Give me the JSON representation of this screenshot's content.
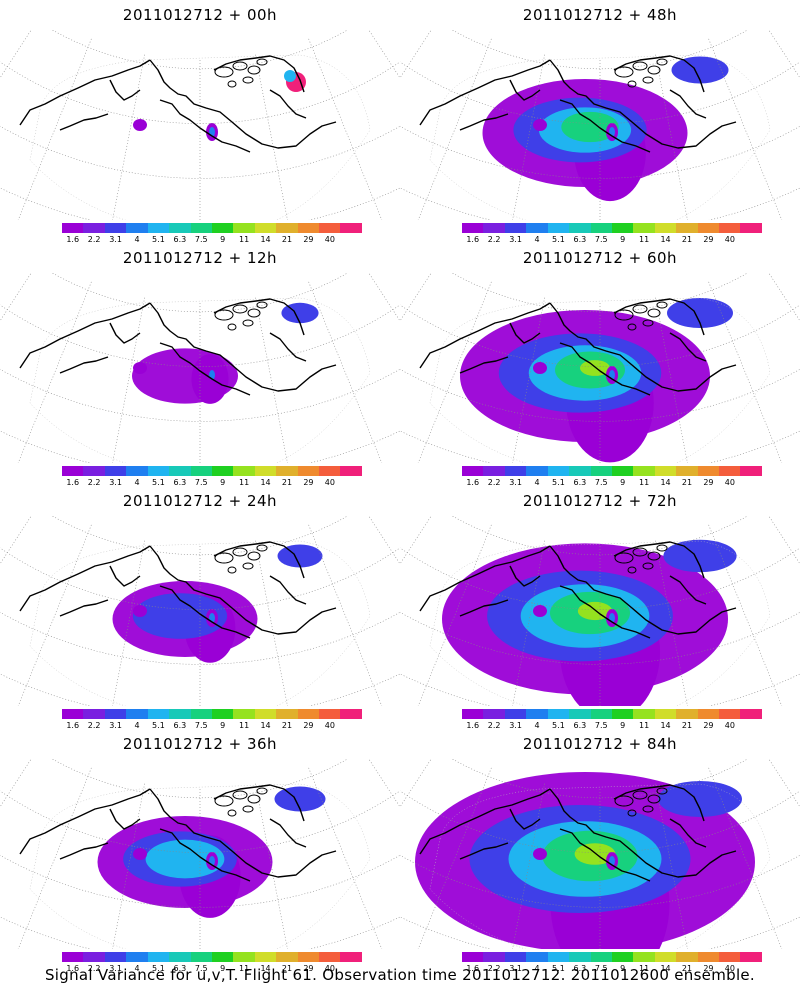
{
  "panels": [
    {
      "title": "2011012712 + 00h",
      "spread": 0.1
    },
    {
      "title": "2011012712 + 48h",
      "spread": 0.55
    },
    {
      "title": "2011012712 + 12h",
      "spread": 0.22
    },
    {
      "title": "2011012712 + 60h",
      "spread": 0.7
    },
    {
      "title": "2011012712 + 24h",
      "spread": 0.35
    },
    {
      "title": "2011012712 + 72h",
      "spread": 0.82
    },
    {
      "title": "2011012712 + 36h",
      "spread": 0.45
    },
    {
      "title": "2011012712 + 84h",
      "spread": 1.0
    }
  ],
  "colorbar": {
    "labels": [
      "1.6",
      "2.2",
      "3.1",
      "4",
      "5.1",
      "6.3",
      "7.5",
      "9",
      "11",
      "14",
      "21",
      "29",
      "40"
    ],
    "colors": [
      "#9a00d6",
      "#7a1fe0",
      "#3f3fe8",
      "#1f7ff0",
      "#20b4f0",
      "#18c9b8",
      "#17d17e",
      "#1fd021",
      "#95e21f",
      "#d0dd2a",
      "#e0b02c",
      "#ef8a2e",
      "#f45d3c",
      "#f0207a"
    ]
  },
  "caption": "Signal Variance for u,v,T. Flight 61. Observation time 2011012712. 2011012600 ensemble."
}
